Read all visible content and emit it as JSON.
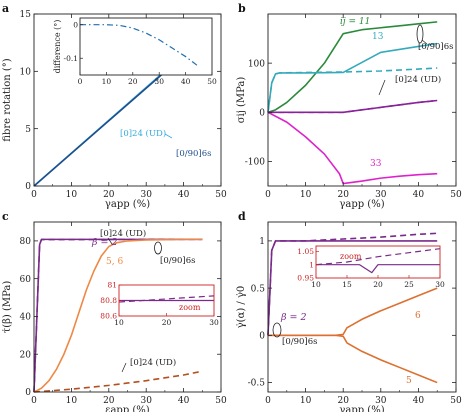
{
  "chart_data": [
    {
      "panel": "a",
      "type": "line",
      "ylabel": "fibre rotation (°)",
      "xlabel": "γapp (%)",
      "xlim": [
        0,
        50
      ],
      "ylim": [
        0,
        15
      ],
      "xticks": [
        0,
        10,
        20,
        30,
        40,
        50
      ],
      "yticks": [
        0,
        5,
        10,
        15
      ],
      "series": [
        {
          "name": "[0]24 (UD)",
          "color": "#33aadd",
          "style": "solid",
          "x": [
            0,
            45
          ],
          "y": [
            0,
            12.9
          ]
        },
        {
          "name": "[0/90]6s",
          "color": "#1f4e8c",
          "style": "solid",
          "x": [
            0,
            45
          ],
          "y": [
            0,
            12.8
          ]
        }
      ],
      "annotations": [
        "[0]24 (UD)",
        "[0/90]6s"
      ],
      "inset": {
        "ylabel": "difference (°)",
        "xlim": [
          0,
          50
        ],
        "ylim": [
          -0.15,
          0.02
        ],
        "xticks": [
          0,
          10,
          20,
          30,
          40,
          50
        ],
        "yticks": [
          0,
          -0.1
        ],
        "series": [
          {
            "color": "#1f6fb4",
            "style": "dashdot",
            "x": [
              0,
              5,
              10,
              15,
              20,
              25,
              30,
              35,
              40,
              45
            ],
            "y": [
              0.0,
              0.0,
              0.0,
              -0.002,
              -0.01,
              -0.025,
              -0.045,
              -0.07,
              -0.095,
              -0.125
            ]
          }
        ]
      }
    },
    {
      "panel": "b",
      "type": "line",
      "ylabel": "σij (MPa)",
      "xlabel": "γapp (%)",
      "xlim": [
        0,
        50
      ],
      "ylim": [
        -150,
        200
      ],
      "xticks": [
        0,
        10,
        20,
        30,
        40,
        50
      ],
      "yticks": [
        -100,
        0,
        100
      ],
      "series": [
        {
          "name": "ij = 11",
          "color": "#2a8a3a",
          "style": "solid",
          "x": [
            0,
            2,
            5,
            10,
            15,
            20,
            25,
            30,
            35,
            40,
            45
          ],
          "y": [
            0,
            5,
            20,
            55,
            100,
            160,
            168,
            172,
            176,
            180,
            184
          ]
        },
        {
          "name": "13 [0/90]6s",
          "color": "#33aabb",
          "style": "solid",
          "x": [
            0,
            1,
            2,
            3,
            5,
            10,
            20,
            30,
            40,
            45
          ],
          "y": [
            0,
            60,
            78,
            80,
            80,
            80,
            81,
            122,
            134,
            140
          ]
        },
        {
          "name": "13 [0]24 (UD)",
          "color": "#33aabb",
          "style": "dashed",
          "x": [
            0,
            1,
            2,
            3,
            10,
            20,
            30,
            40,
            45
          ],
          "y": [
            0,
            60,
            78,
            80,
            81,
            82,
            84,
            88,
            90
          ]
        },
        {
          "name": "33 [0/90]6s",
          "color": "#dd22cc",
          "style": "solid",
          "x": [
            0,
            5,
            10,
            15,
            19,
            20,
            25,
            30,
            35,
            40,
            45
          ],
          "y": [
            0,
            -20,
            -50,
            -85,
            -125,
            -145,
            -140,
            -134,
            -130,
            -127,
            -125
          ]
        },
        {
          "name": "[0/90]6s",
          "color": "#882299",
          "style": "solid",
          "x": [
            0,
            1,
            5,
            10,
            20,
            30,
            40,
            45
          ],
          "y": [
            0,
            0,
            0,
            0,
            0,
            10,
            20,
            24
          ]
        },
        {
          "name": "[0]24 (UD)",
          "color": "#882299",
          "style": "dashed",
          "x": [
            0,
            1,
            5,
            10,
            20,
            30,
            40,
            45
          ],
          "y": [
            0,
            0,
            0,
            0,
            0,
            10,
            20,
            24
          ]
        }
      ],
      "annotations": [
        "ij = 11",
        "13",
        "[0/90]6s",
        "[0]24 (UD)",
        "33"
      ]
    },
    {
      "panel": "c",
      "type": "line",
      "ylabel": "τ̇(β) (MPa)",
      "xlabel": "εapp (%)",
      "xlim": [
        0,
        50
      ],
      "ylim": [
        0,
        90
      ],
      "xticks": [
        0,
        10,
        20,
        30,
        40,
        50
      ],
      "yticks": [
        0,
        20,
        40,
        60,
        80
      ],
      "series": [
        {
          "name": "β = 2 [0/90]6s",
          "color": "#7a2a8a",
          "style": "solid",
          "x": [
            0,
            1.5,
            2,
            10,
            20,
            30,
            40,
            45
          ],
          "y": [
            0,
            78,
            80.8,
            80.8,
            80.8,
            80.8,
            80.8,
            80.8
          ]
        },
        {
          "name": "β = 2 [0]24 (UD)",
          "color": "#7a2a8a",
          "style": "dashed",
          "x": [
            0,
            1.5,
            2,
            10,
            20,
            30,
            40,
            45
          ],
          "y": [
            0,
            78,
            80.7,
            80.7,
            80.75,
            80.8,
            80.82,
            80.85
          ]
        },
        {
          "name": "5, 6 [0/90]6s",
          "color": "#ee8844",
          "style": "solid",
          "x": [
            0,
            2,
            4,
            6,
            8,
            10,
            12,
            14,
            16,
            18,
            20,
            22,
            25,
            30,
            40,
            45
          ],
          "y": [
            0,
            2,
            6,
            12,
            20,
            30,
            42,
            54,
            64,
            72,
            77,
            79,
            80,
            80.5,
            80.8,
            80.8
          ]
        },
        {
          "name": "5, 6 [0]24 (UD)",
          "color": "#b45020",
          "style": "dashed",
          "x": [
            0,
            10,
            20,
            30,
            40,
            45
          ],
          "y": [
            0,
            1.5,
            3.5,
            6,
            9,
            11
          ]
        }
      ],
      "annotations": [
        "β = 2",
        "[0]24 (UD)",
        "[0/90]6s",
        "5, 6",
        "[0]24 (UD)"
      ],
      "inset": {
        "xlim": [
          10,
          30
        ],
        "ylim": [
          80.6,
          81.0
        ],
        "xticks": [
          10,
          20,
          30
        ],
        "yticks": [
          80.6,
          80.8,
          81.0
        ],
        "label": "zoom",
        "series": [
          {
            "color": "#7a2a8a",
            "style": "solid",
            "x": [
              10,
              30
            ],
            "y": [
              80.8,
              80.8
            ]
          },
          {
            "color": "#7a2a8a",
            "style": "dashed",
            "x": [
              10,
              15,
              20,
              25,
              30
            ],
            "y": [
              80.78,
              80.8,
              80.82,
              80.84,
              80.86
            ]
          }
        ]
      }
    },
    {
      "panel": "d",
      "type": "line",
      "ylabel": "γ̇(α) / γ̇0",
      "xlabel": "γapp (%)",
      "xlim": [
        0,
        50
      ],
      "ylim": [
        -0.6,
        1.2
      ],
      "xticks": [
        0,
        10,
        20,
        30,
        40,
        50
      ],
      "yticks": [
        -0.5,
        0,
        0.5,
        1
      ],
      "series": [
        {
          "name": "β = 2 [0/90]6s",
          "color": "#7a2a8a",
          "style": "solid",
          "x": [
            0,
            1,
            2,
            10,
            20,
            30,
            40,
            45
          ],
          "y": [
            0,
            0.9,
            1.0,
            1.0,
            1.0,
            1.0,
            1.0,
            1.0
          ]
        },
        {
          "name": "β = 2 [0]24 (UD)",
          "color": "#7a2a8a",
          "style": "dashed",
          "x": [
            0,
            1,
            2,
            10,
            20,
            30,
            40,
            45
          ],
          "y": [
            0,
            0.9,
            1.0,
            1.0,
            1.02,
            1.04,
            1.07,
            1.08
          ]
        },
        {
          "name": "6",
          "color": "#dd7030",
          "style": "solid",
          "x": [
            0,
            5,
            10,
            18,
            20,
            21,
            25,
            30,
            35,
            40,
            45
          ],
          "y": [
            0,
            0,
            0,
            0,
            0.01,
            0.08,
            0.17,
            0.26,
            0.34,
            0.42,
            0.5
          ]
        },
        {
          "name": "5",
          "color": "#dd7030",
          "style": "solid",
          "x": [
            0,
            5,
            10,
            18,
            20,
            21,
            25,
            30,
            35,
            40,
            45
          ],
          "y": [
            0,
            0,
            0,
            0,
            -0.01,
            -0.08,
            -0.17,
            -0.26,
            -0.34,
            -0.42,
            -0.5
          ]
        }
      ],
      "annotations": [
        "β = 2",
        "[0/90]6s",
        "6",
        "5"
      ],
      "inset": {
        "xlim": [
          10,
          30
        ],
        "ylim": [
          0.95,
          1.07
        ],
        "xticks": [
          10,
          15,
          20,
          25,
          30
        ],
        "yticks": [
          0.95,
          1.0,
          1.05
        ],
        "label": "zoom",
        "series": [
          {
            "color": "#7a2a8a",
            "style": "solid",
            "x": [
              10,
              17,
              19,
              20,
              30
            ],
            "y": [
              1.0,
              1.0,
              0.97,
              1.0,
              1.0
            ]
          },
          {
            "color": "#7a2a8a",
            "style": "dashed",
            "x": [
              10,
              15,
              20,
              25,
              30
            ],
            "y": [
              1.0,
              1.01,
              1.03,
              1.045,
              1.06
            ]
          }
        ]
      }
    }
  ]
}
